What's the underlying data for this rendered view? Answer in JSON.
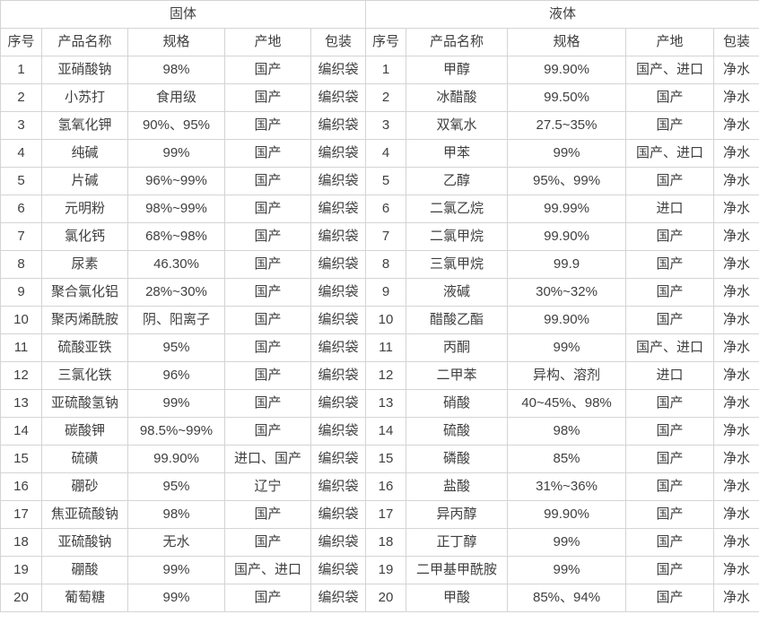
{
  "colors": {
    "border": "#d4d4d4",
    "text": "#3f3f3f",
    "background": "#ffffff"
  },
  "tables": {
    "solid": {
      "group_title": "固体",
      "headers": [
        "序号",
        "产品名称",
        "规格",
        "产地",
        "包装"
      ],
      "rows": [
        [
          "1",
          "亚硝酸钠",
          "98%",
          "国产",
          "编织袋"
        ],
        [
          "2",
          "小苏打",
          "食用级",
          "国产",
          "编织袋"
        ],
        [
          "3",
          "氢氧化钾",
          "90%、95%",
          "国产",
          "编织袋"
        ],
        [
          "4",
          "纯碱",
          "99%",
          "国产",
          "编织袋"
        ],
        [
          "5",
          "片碱",
          "96%~99%",
          "国产",
          "编织袋"
        ],
        [
          "6",
          "元明粉",
          "98%~99%",
          "国产",
          "编织袋"
        ],
        [
          "7",
          "氯化钙",
          "68%~98%",
          "国产",
          "编织袋"
        ],
        [
          "8",
          "尿素",
          "46.30%",
          "国产",
          "编织袋"
        ],
        [
          "9",
          "聚合氯化铝",
          "28%~30%",
          "国产",
          "编织袋"
        ],
        [
          "10",
          "聚丙烯酰胺",
          "阴、阳离子",
          "国产",
          "编织袋"
        ],
        [
          "11",
          "硫酸亚铁",
          "95%",
          "国产",
          "编织袋"
        ],
        [
          "12",
          "三氯化铁",
          "96%",
          "国产",
          "编织袋"
        ],
        [
          "13",
          "亚硫酸氢钠",
          "99%",
          "国产",
          "编织袋"
        ],
        [
          "14",
          "碳酸钾",
          "98.5%~99%",
          "国产",
          "编织袋"
        ],
        [
          "15",
          "硫磺",
          "99.90%",
          "进口、国产",
          "编织袋"
        ],
        [
          "16",
          "硼砂",
          "95%",
          "辽宁",
          "编织袋"
        ],
        [
          "17",
          "焦亚硫酸钠",
          "98%",
          "国产",
          "编织袋"
        ],
        [
          "18",
          "亚硫酸钠",
          "无水",
          "国产",
          "编织袋"
        ],
        [
          "19",
          "硼酸",
          "99%",
          "国产、进口",
          "编织袋"
        ],
        [
          "20",
          "葡萄糖",
          "99%",
          "国产",
          "编织袋"
        ]
      ]
    },
    "liquid": {
      "group_title": "液体",
      "headers": [
        "序号",
        "产品名称",
        "规格",
        "产地",
        "包装"
      ],
      "rows": [
        [
          "1",
          "甲醇",
          "99.90%",
          "国产、进口",
          "净水"
        ],
        [
          "2",
          "冰醋酸",
          "99.50%",
          "国产",
          "净水"
        ],
        [
          "3",
          "双氧水",
          "27.5~35%",
          "国产",
          "净水"
        ],
        [
          "4",
          "甲苯",
          "99%",
          "国产、进口",
          "净水"
        ],
        [
          "5",
          "乙醇",
          "95%、99%",
          "国产",
          "净水"
        ],
        [
          "6",
          "二氯乙烷",
          "99.99%",
          "进口",
          "净水"
        ],
        [
          "7",
          "二氯甲烷",
          "99.90%",
          "国产",
          "净水"
        ],
        [
          "8",
          "三氯甲烷",
          "99.9",
          "国产",
          "净水"
        ],
        [
          "9",
          "液碱",
          "30%~32%",
          "国产",
          "净水"
        ],
        [
          "10",
          "醋酸乙酯",
          "99.90%",
          "国产",
          "净水"
        ],
        [
          "11",
          "丙酮",
          "99%",
          "国产、进口",
          "净水"
        ],
        [
          "12",
          "二甲苯",
          "异构、溶剂",
          "进口",
          "净水"
        ],
        [
          "13",
          "硝酸",
          "40~45%、98%",
          "国产",
          "净水"
        ],
        [
          "14",
          "硫酸",
          "98%",
          "国产",
          "净水"
        ],
        [
          "15",
          "磷酸",
          "85%",
          "国产",
          "净水"
        ],
        [
          "16",
          "盐酸",
          "31%~36%",
          "国产",
          "净水"
        ],
        [
          "17",
          "异丙醇",
          "99.90%",
          "国产",
          "净水"
        ],
        [
          "18",
          "正丁醇",
          "99%",
          "国产",
          "净水"
        ],
        [
          "19",
          "二甲基甲酰胺",
          "99%",
          "国产",
          "净水"
        ],
        [
          "20",
          "甲酸",
          "85%、94%",
          "国产",
          "净水"
        ]
      ]
    }
  }
}
